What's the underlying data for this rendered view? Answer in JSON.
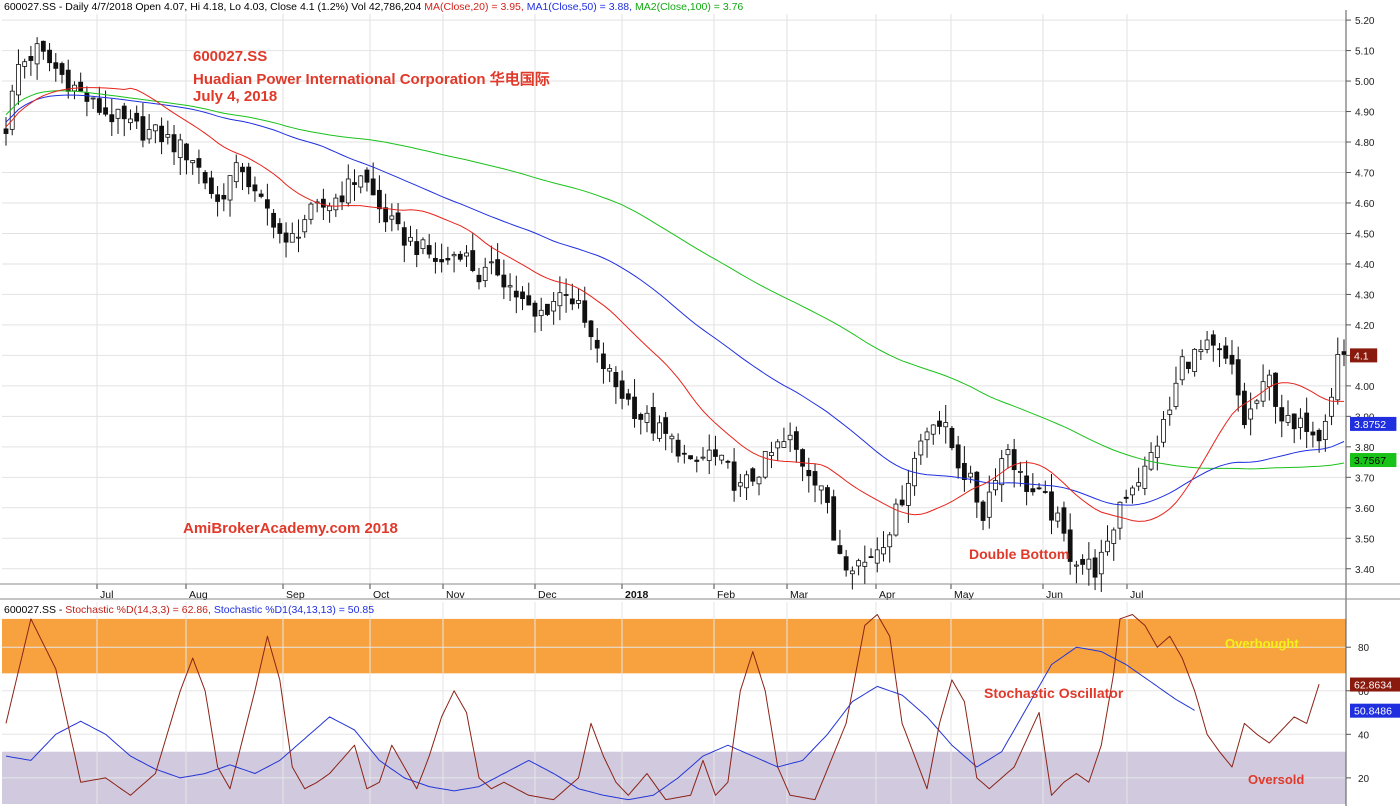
{
  "price_header": {
    "base": "600027.SS - Daily 4/7/2018 Open 4.07, Hi 4.18, Lo 4.03, Close 4.1 (1.2%) Vol 42,786,204 ",
    "ma20": "MA(Close,20) = 3.95, ",
    "ma50": "MA1(Close,50) = 3.88, ",
    "ma100": "MA2(Close,100) = 3.76"
  },
  "stoch_header": {
    "base": "600027.SS - ",
    "d": "Stochastic %D(14,3,3) = 62.86, ",
    "d1": "Stochastic %D1(34,13,13) = 50.85"
  },
  "annotations": {
    "ticker": "600027.SS",
    "company": "Huadian Power International Corporation 华电国际",
    "date": "July 4, 2018",
    "watermark": "AmiBrokerAcademy.com  2018",
    "double_bottom": "Double Bottom",
    "overbought": "Overbought",
    "stoch_label": "Stochastic Oscillator",
    "oversold": "Oversold"
  },
  "colors": {
    "ma20": "#e8231b",
    "ma50": "#1f2fe0",
    "ma100": "#19c219",
    "stoch_d": "#8b2316",
    "stoch_d1": "#2436d6",
    "overbought_band": "#f7a23e",
    "oversold_band": "#d1cadf",
    "annotation": "#e0392a"
  },
  "chart_data": [
    {
      "type": "candlestick",
      "title": "600027.SS Daily",
      "x_months": [
        "Jul",
        "Aug",
        "Sep",
        "Oct",
        "Nov",
        "Dec",
        "2018",
        "Feb",
        "Mar",
        "Apr",
        "May",
        "Jun",
        "Jul"
      ],
      "ylim": [
        3.35,
        5.22
      ],
      "y_ticks": [
        3.4,
        3.5,
        3.6,
        3.7,
        3.8,
        3.9,
        4.0,
        4.1,
        4.2,
        4.3,
        4.4,
        4.5,
        4.6,
        4.7,
        4.8,
        4.9,
        5.0,
        5.1,
        5.2
      ],
      "close_path": [
        [
          0,
          4.85
        ],
        [
          2,
          5.05
        ],
        [
          5,
          5.1
        ],
        [
          10,
          5.0
        ],
        [
          14,
          4.92
        ],
        [
          20,
          4.85
        ],
        [
          25,
          4.82
        ],
        [
          30,
          4.75
        ],
        [
          34,
          4.6
        ],
        [
          36,
          4.68
        ],
        [
          38,
          4.72
        ],
        [
          40,
          4.62
        ],
        [
          43,
          4.55
        ],
        [
          45,
          4.45
        ],
        [
          48,
          4.55
        ],
        [
          52,
          4.6
        ],
        [
          55,
          4.65
        ],
        [
          57,
          4.7
        ],
        [
          60,
          4.58
        ],
        [
          63,
          4.5
        ],
        [
          66,
          4.46
        ],
        [
          70,
          4.4
        ],
        [
          73,
          4.45
        ],
        [
          76,
          4.36
        ],
        [
          79,
          4.38
        ],
        [
          82,
          4.3
        ],
        [
          85,
          4.22
        ],
        [
          88,
          4.28
        ],
        [
          90,
          4.32
        ],
        [
          92,
          4.25
        ],
        [
          95,
          4.1
        ],
        [
          98,
          4.0
        ],
        [
          102,
          3.9
        ],
        [
          105,
          3.85
        ],
        [
          108,
          3.8
        ],
        [
          110,
          3.73
        ],
        [
          113,
          3.78
        ],
        [
          116,
          3.72
        ],
        [
          118,
          3.66
        ],
        [
          120,
          3.7
        ],
        [
          122,
          3.75
        ],
        [
          124,
          3.8
        ],
        [
          126,
          3.82
        ],
        [
          128,
          3.75
        ],
        [
          131,
          3.68
        ],
        [
          133,
          3.5
        ],
        [
          135,
          3.43
        ],
        [
          138,
          3.42
        ],
        [
          141,
          3.5
        ],
        [
          143,
          3.58
        ],
        [
          145,
          3.7
        ],
        [
          147,
          3.82
        ],
        [
          149,
          3.9
        ],
        [
          151,
          3.85
        ],
        [
          153,
          3.75
        ],
        [
          155,
          3.68
        ],
        [
          157,
          3.58
        ],
        [
          159,
          3.72
        ],
        [
          161,
          3.8
        ],
        [
          163,
          3.7
        ],
        [
          165,
          3.65
        ],
        [
          167,
          3.62
        ],
        [
          169,
          3.55
        ],
        [
          171,
          3.45
        ],
        [
          173,
          3.42
        ],
        [
          175,
          3.4
        ],
        [
          177,
          3.46
        ],
        [
          179,
          3.62
        ],
        [
          181,
          3.68
        ],
        [
          183,
          3.72
        ],
        [
          185,
          3.82
        ],
        [
          187,
          3.92
        ],
        [
          189,
          4.08
        ],
        [
          191,
          4.1
        ],
        [
          193,
          4.12
        ],
        [
          195,
          4.1
        ],
        [
          197,
          4.05
        ],
        [
          199,
          3.88
        ],
        [
          201,
          3.95
        ],
        [
          203,
          4.02
        ],
        [
          205,
          3.9
        ],
        [
          207,
          3.85
        ],
        [
          209,
          3.88
        ],
        [
          211,
          3.85
        ],
        [
          213,
          3.98
        ],
        [
          214,
          4.1
        ]
      ],
      "overlays": [
        {
          "name": "MA(Close,20)",
          "value": 3.95
        },
        {
          "name": "MA1(Close,50)",
          "value": 3.88,
          "label": "3.8752"
        },
        {
          "name": "MA2(Close,100)",
          "value": 3.76,
          "label": "3.7567"
        }
      ],
      "last_close_label": "4.1"
    },
    {
      "type": "line",
      "title": "Stochastic",
      "ylim": [
        8,
        98
      ],
      "y_ticks": [
        20,
        40,
        60,
        80
      ],
      "overbought_zone": [
        68,
        93
      ],
      "oversold_zone": [
        8,
        32
      ],
      "series": [
        {
          "name": "Stochastic %D(14,3,3)",
          "last_label": "62.8634",
          "points": [
            [
              0,
              45
            ],
            [
              4,
              93
            ],
            [
              8,
              70
            ],
            [
              12,
              18
            ],
            [
              16,
              20
            ],
            [
              20,
              12
            ],
            [
              24,
              22
            ],
            [
              28,
              60
            ],
            [
              30,
              75
            ],
            [
              32,
              60
            ],
            [
              34,
              25
            ],
            [
              36,
              15
            ],
            [
              40,
              60
            ],
            [
              42,
              85
            ],
            [
              44,
              65
            ],
            [
              46,
              25
            ],
            [
              48,
              15
            ],
            [
              50,
              18
            ],
            [
              52,
              22
            ],
            [
              56,
              35
            ],
            [
              58,
              15
            ],
            [
              60,
              18
            ],
            [
              62,
              35
            ],
            [
              64,
              25
            ],
            [
              66,
              15
            ],
            [
              68,
              30
            ],
            [
              70,
              48
            ],
            [
              72,
              60
            ],
            [
              74,
              50
            ],
            [
              76,
              20
            ],
            [
              78,
              15
            ],
            [
              80,
              18
            ],
            [
              84,
              12
            ],
            [
              88,
              10
            ],
            [
              92,
              20
            ],
            [
              94,
              45
            ],
            [
              96,
              30
            ],
            [
              98,
              18
            ],
            [
              100,
              12
            ],
            [
              103,
              22
            ],
            [
              106,
              10
            ],
            [
              110,
              12
            ],
            [
              112,
              28
            ],
            [
              114,
              12
            ],
            [
              116,
              18
            ],
            [
              118,
              60
            ],
            [
              120,
              78
            ],
            [
              122,
              60
            ],
            [
              124,
              25
            ],
            [
              126,
              12
            ],
            [
              130,
              10
            ],
            [
              135,
              45
            ],
            [
              138,
              90
            ],
            [
              140,
              95
            ],
            [
              142,
              85
            ],
            [
              144,
              45
            ],
            [
              146,
              30
            ],
            [
              148,
              15
            ],
            [
              150,
              45
            ],
            [
              152,
              65
            ],
            [
              154,
              55
            ],
            [
              156,
              20
            ],
            [
              158,
              15
            ],
            [
              162,
              25
            ],
            [
              166,
              50
            ],
            [
              168,
              12
            ],
            [
              170,
              18
            ],
            [
              172,
              22
            ],
            [
              174,
              18
            ],
            [
              176,
              35
            ],
            [
              178,
              68
            ],
            [
              179,
              93
            ],
            [
              181,
              95
            ],
            [
              183,
              90
            ],
            [
              185,
              80
            ],
            [
              187,
              85
            ],
            [
              189,
              75
            ],
            [
              191,
              60
            ],
            [
              193,
              40
            ],
            [
              195,
              32
            ],
            [
              197,
              25
            ],
            [
              199,
              45
            ],
            [
              201,
              40
            ],
            [
              203,
              36
            ],
            [
              205,
              42
            ],
            [
              207,
              48
            ],
            [
              209,
              45
            ],
            [
              211,
              63
            ]
          ]
        },
        {
          "name": "Stochastic %D1(34,13,13)",
          "last_label": "50.8486",
          "points": [
            [
              0,
              30
            ],
            [
              4,
              28
            ],
            [
              8,
              40
            ],
            [
              12,
              46
            ],
            [
              16,
              40
            ],
            [
              20,
              30
            ],
            [
              24,
              24
            ],
            [
              28,
              20
            ],
            [
              32,
              22
            ],
            [
              36,
              26
            ],
            [
              40,
              22
            ],
            [
              44,
              28
            ],
            [
              48,
              38
            ],
            [
              52,
              48
            ],
            [
              56,
              42
            ],
            [
              60,
              28
            ],
            [
              64,
              20
            ],
            [
              68,
              16
            ],
            [
              72,
              14
            ],
            [
              76,
              16
            ],
            [
              80,
              22
            ],
            [
              84,
              28
            ],
            [
              88,
              22
            ],
            [
              92,
              15
            ],
            [
              96,
              12
            ],
            [
              100,
              10
            ],
            [
              104,
              12
            ],
            [
              108,
              20
            ],
            [
              112,
              30
            ],
            [
              116,
              35
            ],
            [
              120,
              30
            ],
            [
              124,
              25
            ],
            [
              128,
              28
            ],
            [
              132,
              40
            ],
            [
              136,
              55
            ],
            [
              140,
              62
            ],
            [
              144,
              58
            ],
            [
              148,
              48
            ],
            [
              152,
              35
            ],
            [
              156,
              25
            ],
            [
              160,
              32
            ],
            [
              164,
              52
            ],
            [
              168,
              72
            ],
            [
              172,
              80
            ],
            [
              176,
              78
            ],
            [
              180,
              72
            ],
            [
              184,
              64
            ],
            [
              188,
              56
            ],
            [
              191,
              51
            ]
          ]
        }
      ]
    }
  ]
}
